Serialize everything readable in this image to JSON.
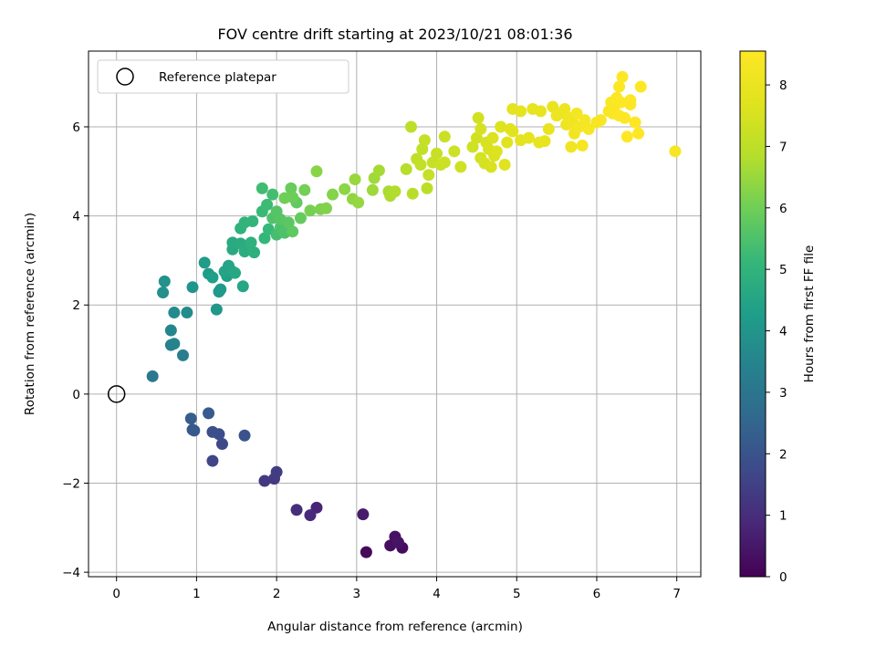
{
  "chart_data": {
    "type": "scatter",
    "title": "FOV centre drift starting at 2023/10/21 08:01:36",
    "xlabel": "Angular distance from reference (arcmin)",
    "ylabel": "Rotation from reference (arcmin)",
    "xlim": [
      -0.35,
      7.3
    ],
    "ylim": [
      -4.1,
      7.7
    ],
    "x_ticks": [
      0,
      1,
      2,
      3,
      4,
      5,
      6,
      7
    ],
    "y_ticks": [
      -4,
      -2,
      0,
      2,
      4,
      6
    ],
    "x_tick_labels": [
      "0",
      "1",
      "2",
      "3",
      "4",
      "5",
      "6",
      "7"
    ],
    "y_tick_labels": [
      "−4",
      "−2",
      "0",
      "2",
      "4",
      "6"
    ],
    "grid": true,
    "legend": {
      "label": "Reference platepar",
      "placement": "top-left"
    },
    "reference_point": {
      "x": 0,
      "y": 0
    },
    "colorbar": {
      "label": "Hours from first FF file",
      "colormap": "viridis",
      "range": [
        0,
        8.55
      ],
      "ticks": [
        0,
        1,
        2,
        3,
        4,
        5,
        6,
        7,
        8
      ],
      "tick_labels": [
        "0",
        "1",
        "2",
        "3",
        "4",
        "5",
        "6",
        "7",
        "8"
      ]
    },
    "series": [
      {
        "points": [
          [
            3.12,
            -3.55,
            0.15
          ],
          [
            3.57,
            -3.45,
            0.25
          ],
          [
            3.42,
            -3.4,
            0.3
          ],
          [
            3.48,
            -3.2,
            0.35
          ],
          [
            3.52,
            -3.33,
            0.4
          ],
          [
            3.08,
            -2.7,
            0.55
          ],
          [
            2.5,
            -2.55,
            0.8
          ],
          [
            2.42,
            -2.72,
            0.9
          ],
          [
            2.25,
            -2.6,
            1.0
          ],
          [
            1.85,
            -1.95,
            1.3
          ],
          [
            1.97,
            -1.9,
            1.35
          ],
          [
            2.0,
            -1.75,
            1.4
          ],
          [
            1.2,
            -1.5,
            1.6
          ],
          [
            1.32,
            -1.12,
            1.7
          ],
          [
            1.28,
            -0.9,
            1.8
          ],
          [
            1.2,
            -0.85,
            1.9
          ],
          [
            1.6,
            -0.93,
            2.0
          ],
          [
            0.95,
            -0.8,
            2.1
          ],
          [
            0.97,
            -0.82,
            2.15
          ],
          [
            1.15,
            -0.43,
            2.2
          ],
          [
            0.93,
            -0.55,
            2.3
          ],
          [
            0.45,
            0.4,
            3.1
          ],
          [
            0.83,
            0.87,
            3.3
          ],
          [
            0.68,
            1.1,
            3.4
          ],
          [
            0.72,
            1.13,
            3.45
          ],
          [
            0.68,
            1.43,
            3.5
          ],
          [
            0.72,
            1.83,
            3.65
          ],
          [
            0.88,
            1.83,
            3.7
          ],
          [
            0.58,
            2.28,
            3.85
          ],
          [
            0.6,
            2.53,
            3.9
          ],
          [
            0.95,
            2.4,
            4.0
          ],
          [
            1.25,
            1.9,
            4.05
          ],
          [
            1.28,
            2.3,
            4.1
          ],
          [
            1.3,
            2.35,
            4.15
          ],
          [
            1.1,
            2.95,
            4.2
          ],
          [
            1.15,
            2.7,
            4.25
          ],
          [
            1.2,
            2.62,
            4.3
          ],
          [
            1.38,
            2.65,
            4.35
          ],
          [
            1.45,
            2.75,
            4.4
          ],
          [
            1.35,
            2.75,
            4.45
          ],
          [
            1.4,
            2.88,
            4.5
          ],
          [
            1.58,
            2.42,
            4.55
          ],
          [
            1.48,
            2.72,
            4.6
          ],
          [
            1.45,
            3.25,
            4.65
          ],
          [
            1.45,
            3.4,
            4.7
          ],
          [
            1.55,
            3.38,
            4.75
          ],
          [
            1.6,
            3.2,
            4.8
          ],
          [
            1.72,
            3.18,
            4.85
          ],
          [
            1.68,
            3.4,
            4.9
          ],
          [
            1.55,
            3.72,
            4.95
          ],
          [
            1.6,
            3.85,
            5.0
          ],
          [
            1.7,
            3.88,
            5.05
          ],
          [
            1.85,
            3.5,
            5.1
          ],
          [
            1.9,
            3.7,
            5.15
          ],
          [
            1.82,
            4.1,
            5.2
          ],
          [
            1.88,
            4.25,
            5.25
          ],
          [
            1.82,
            4.62,
            5.3
          ],
          [
            1.95,
            4.48,
            5.35
          ],
          [
            2.0,
            3.58,
            5.4
          ],
          [
            2.05,
            3.75,
            5.45
          ],
          [
            2.1,
            3.62,
            5.5
          ],
          [
            1.95,
            3.95,
            5.55
          ],
          [
            2.0,
            4.1,
            5.6
          ],
          [
            2.05,
            3.92,
            5.65
          ],
          [
            2.15,
            3.85,
            5.7
          ],
          [
            2.2,
            3.65,
            5.75
          ],
          [
            2.25,
            4.3,
            5.8
          ],
          [
            2.3,
            3.95,
            5.85
          ],
          [
            2.18,
            4.62,
            5.9
          ],
          [
            2.2,
            4.42,
            5.95
          ],
          [
            2.1,
            4.4,
            6.0
          ],
          [
            2.35,
            4.58,
            6.05
          ],
          [
            2.42,
            4.12,
            6.1
          ],
          [
            2.55,
            4.15,
            6.15
          ],
          [
            2.62,
            4.17,
            6.2
          ],
          [
            2.7,
            4.48,
            6.25
          ],
          [
            2.5,
            5.0,
            6.3
          ],
          [
            2.85,
            4.6,
            6.35
          ],
          [
            2.95,
            4.38,
            6.4
          ],
          [
            3.02,
            4.3,
            6.45
          ],
          [
            2.98,
            4.82,
            6.5
          ],
          [
            3.2,
            4.58,
            6.55
          ],
          [
            3.22,
            4.85,
            6.6
          ],
          [
            3.28,
            5.02,
            6.65
          ],
          [
            3.4,
            4.55,
            6.7
          ],
          [
            3.42,
            4.45,
            6.75
          ],
          [
            3.48,
            4.55,
            6.8
          ],
          [
            3.62,
            5.05,
            6.85
          ],
          [
            3.7,
            4.5,
            6.9
          ],
          [
            3.88,
            4.62,
            6.95
          ],
          [
            3.68,
            6.0,
            7.0
          ],
          [
            3.75,
            5.28,
            7.05
          ],
          [
            3.8,
            5.15,
            7.1
          ],
          [
            3.82,
            5.5,
            7.1
          ],
          [
            3.85,
            5.7,
            7.15
          ],
          [
            3.9,
            4.92,
            7.15
          ],
          [
            3.95,
            5.2,
            7.2
          ],
          [
            4.0,
            5.4,
            7.2
          ],
          [
            4.05,
            5.15,
            7.25
          ],
          [
            4.1,
            5.78,
            7.25
          ],
          [
            4.1,
            5.2,
            7.3
          ],
          [
            4.22,
            5.45,
            7.3
          ],
          [
            4.3,
            5.1,
            7.35
          ],
          [
            4.45,
            5.55,
            7.35
          ],
          [
            4.5,
            5.75,
            7.4
          ],
          [
            4.52,
            6.2,
            7.4
          ],
          [
            4.55,
            5.3,
            7.45
          ],
          [
            4.6,
            5.18,
            7.45
          ],
          [
            4.62,
            5.65,
            7.5
          ],
          [
            4.55,
            5.95,
            7.5
          ],
          [
            4.65,
            5.5,
            7.55
          ],
          [
            4.68,
            5.1,
            7.55
          ],
          [
            4.7,
            5.75,
            7.6
          ],
          [
            4.72,
            5.35,
            7.6
          ],
          [
            4.75,
            5.45,
            7.65
          ],
          [
            4.8,
            6.0,
            7.65
          ],
          [
            4.85,
            5.15,
            7.7
          ],
          [
            4.88,
            5.65,
            7.7
          ],
          [
            4.92,
            5.95,
            7.75
          ],
          [
            4.95,
            5.9,
            7.75
          ],
          [
            4.95,
            6.4,
            7.8
          ],
          [
            5.05,
            5.7,
            7.8
          ],
          [
            5.05,
            6.35,
            7.85
          ],
          [
            5.15,
            5.75,
            7.85
          ],
          [
            5.2,
            6.4,
            7.9
          ],
          [
            5.28,
            5.65,
            7.9
          ],
          [
            5.3,
            6.35,
            7.95
          ],
          [
            5.35,
            5.68,
            7.95
          ],
          [
            5.4,
            5.95,
            8.0
          ],
          [
            5.45,
            6.45,
            8.0
          ],
          [
            5.5,
            6.25,
            8.05
          ],
          [
            5.55,
            6.3,
            8.05
          ],
          [
            5.6,
            6.4,
            8.1
          ],
          [
            5.62,
            6.05,
            8.1
          ],
          [
            5.65,
            6.2,
            8.15
          ],
          [
            5.68,
            5.55,
            8.15
          ],
          [
            5.7,
            6.1,
            8.2
          ],
          [
            5.72,
            5.85,
            8.2
          ],
          [
            5.75,
            6.3,
            8.25
          ],
          [
            5.78,
            6.0,
            8.25
          ],
          [
            5.82,
            5.58,
            8.3
          ],
          [
            5.85,
            6.15,
            8.3
          ],
          [
            5.9,
            5.95,
            8.35
          ],
          [
            6.0,
            6.1,
            8.35
          ],
          [
            6.05,
            6.15,
            8.4
          ],
          [
            6.15,
            6.35,
            8.4
          ],
          [
            6.18,
            6.55,
            8.45
          ],
          [
            6.22,
            6.45,
            8.45
          ],
          [
            6.25,
            6.65,
            8.5
          ],
          [
            6.28,
            6.9,
            8.5
          ],
          [
            6.32,
            7.12,
            8.52
          ],
          [
            6.3,
            6.55,
            8.52
          ],
          [
            6.35,
            6.2,
            8.54
          ],
          [
            6.38,
            5.78,
            8.54
          ],
          [
            6.42,
            6.5,
            8.55
          ],
          [
            6.48,
            6.1,
            8.55
          ],
          [
            6.52,
            5.85,
            8.55
          ],
          [
            6.55,
            6.9,
            8.55
          ],
          [
            6.98,
            5.45,
            8.35
          ],
          [
            6.42,
            6.6,
            8.55
          ],
          [
            6.28,
            6.25,
            8.5
          ],
          [
            6.2,
            6.3,
            8.45
          ]
        ]
      }
    ]
  }
}
